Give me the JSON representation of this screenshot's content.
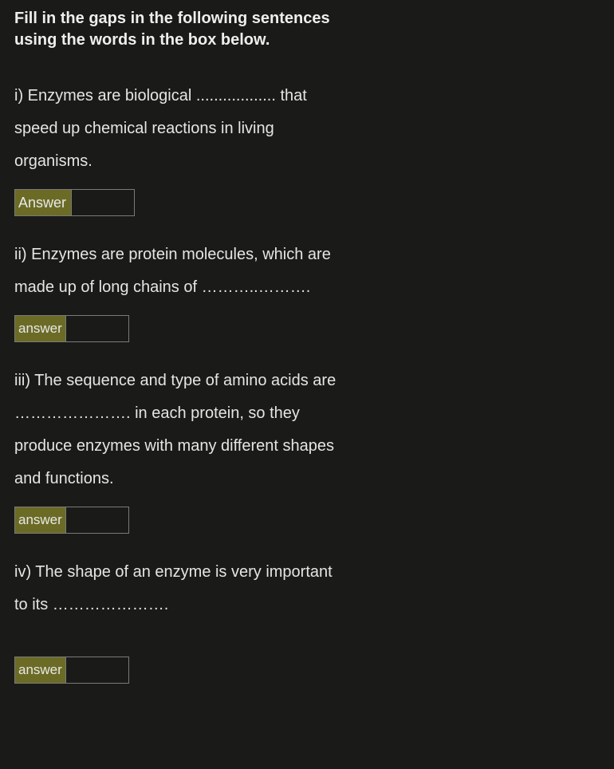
{
  "instructions": "Fill in the gaps in the following sentences using the words in the box below.",
  "questions": [
    {
      "text": "i) Enzymes are biological .................. that speed up chemical reactions in living organisms.",
      "answer_label": "Answer",
      "answer_value": ""
    },
    {
      "text": "ii) Enzymes are protein molecules, which are made up of long chains of ………..……….",
      "answer_label": "answer",
      "answer_value": ""
    },
    {
      "text": "iii) The sequence and type of amino acids are …………………. in each protein, so they produce enzymes with many different shapes and functions.",
      "answer_label": "answer",
      "answer_value": ""
    },
    {
      "text": "iv) The shape of an enzyme is very important to its ………………….",
      "answer_label": "answer",
      "answer_value": ""
    }
  ],
  "colors": {
    "background": "#1a1a18",
    "text": "#e5e5e5",
    "answer_label_bg": "#6b6b26",
    "border": "#7a7a7a"
  }
}
